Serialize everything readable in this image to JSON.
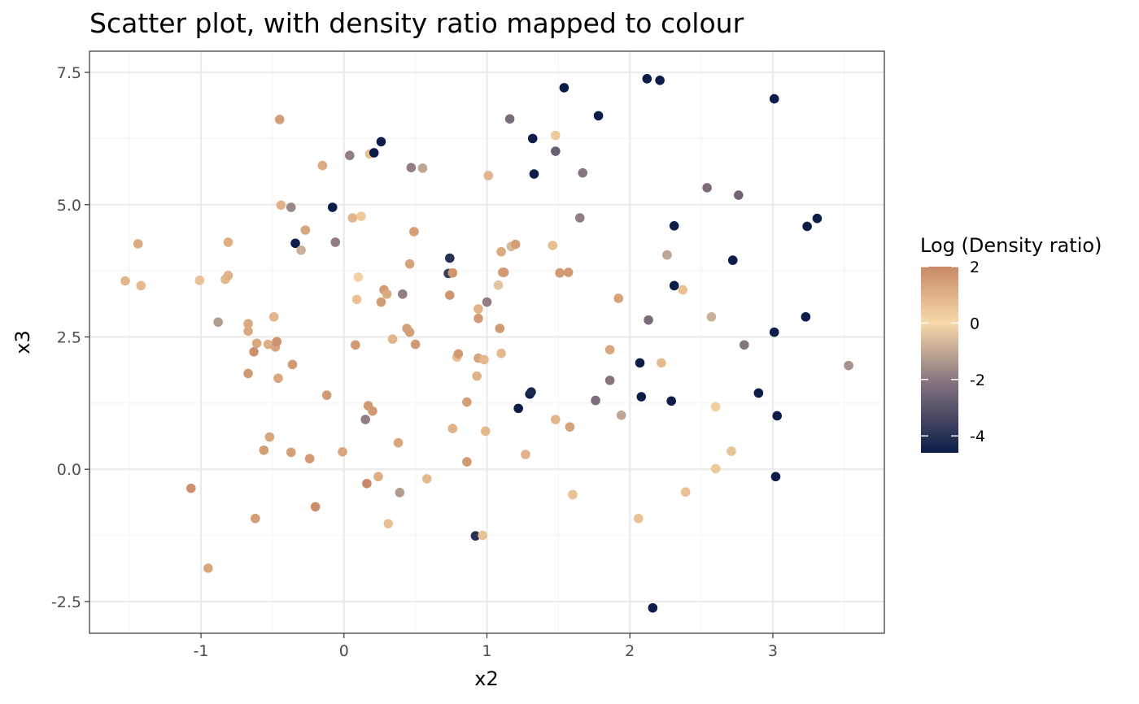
{
  "chart_data": {
    "type": "scatter",
    "title": "Scatter plot, with density ratio mapped to colour",
    "xlabel": "x2",
    "ylabel": "x3",
    "xlim": [
      -1.78,
      3.78
    ],
    "ylim": [
      -3.1,
      7.9
    ],
    "x_ticks": [
      -1,
      0,
      1,
      2,
      3
    ],
    "x_tick_labels": [
      "-1",
      "0",
      "1",
      "2",
      "3"
    ],
    "y_ticks": [
      -2.5,
      0.0,
      2.5,
      5.0,
      7.5
    ],
    "y_tick_labels": [
      "-2.5",
      "0.0",
      "2.5",
      "5.0",
      "7.5"
    ],
    "grid": true,
    "legend": {
      "title": "Log (Density ratio)",
      "placement": "right",
      "range": [
        -4.6,
        2.0
      ],
      "ticks": [
        2,
        0,
        -2,
        -4
      ],
      "tick_labels": [
        "2",
        "0",
        "-2",
        "-4"
      ],
      "colors": {
        "low": "#0b1d48",
        "mid_low": "#85737e",
        "mid": "#f8d9a9",
        "high": "#c88a66"
      }
    },
    "colors": {
      "panel_border": "#333333",
      "grid_major": "#ebebeb",
      "grid_minor": "#f5f5f5"
    },
    "points": [
      {
        "x": -1.53,
        "y": 3.56,
        "c": 0.9
      },
      {
        "x": -1.44,
        "y": 4.26,
        "c": 1.2
      },
      {
        "x": -1.42,
        "y": 3.47,
        "c": 0.8
      },
      {
        "x": -1.07,
        "y": -0.36,
        "c": 1.8
      },
      {
        "x": -1.01,
        "y": 3.57,
        "c": 0.6
      },
      {
        "x": -0.95,
        "y": -1.87,
        "c": 1.3
      },
      {
        "x": -0.88,
        "y": 2.78,
        "c": -1.2
      },
      {
        "x": -0.83,
        "y": 3.59,
        "c": 0.8
      },
      {
        "x": -0.81,
        "y": 4.29,
        "c": 1.1
      },
      {
        "x": -0.81,
        "y": 3.66,
        "c": 1.0
      },
      {
        "x": -0.67,
        "y": 2.75,
        "c": 1.2
      },
      {
        "x": -0.67,
        "y": 2.61,
        "c": 1.2
      },
      {
        "x": -0.67,
        "y": 1.81,
        "c": 1.6
      },
      {
        "x": -0.63,
        "y": 2.22,
        "c": 1.8
      },
      {
        "x": -0.62,
        "y": -0.93,
        "c": 1.5
      },
      {
        "x": -0.61,
        "y": 2.38,
        "c": 1.3
      },
      {
        "x": -0.56,
        "y": 0.36,
        "c": 1.5
      },
      {
        "x": -0.53,
        "y": 2.36,
        "c": 1.1
      },
      {
        "x": -0.52,
        "y": 0.61,
        "c": 1.3
      },
      {
        "x": -0.49,
        "y": 2.88,
        "c": 0.9
      },
      {
        "x": -0.48,
        "y": 2.31,
        "c": 1.3
      },
      {
        "x": -0.47,
        "y": 2.41,
        "c": 1.8
      },
      {
        "x": -0.46,
        "y": 1.72,
        "c": 1.3
      },
      {
        "x": -0.45,
        "y": 6.61,
        "c": 1.5
      },
      {
        "x": -0.44,
        "y": 4.99,
        "c": 1.0
      },
      {
        "x": -0.37,
        "y": 4.95,
        "c": -1.6
      },
      {
        "x": -0.37,
        "y": 0.32,
        "c": 1.5
      },
      {
        "x": -0.36,
        "y": 1.98,
        "c": 1.6
      },
      {
        "x": -0.34,
        "y": 4.27,
        "c": -4.6
      },
      {
        "x": -0.3,
        "y": 4.14,
        "c": -0.8
      },
      {
        "x": -0.27,
        "y": 4.52,
        "c": 1.3
      },
      {
        "x": -0.24,
        "y": 0.2,
        "c": 1.6
      },
      {
        "x": -0.2,
        "y": -0.71,
        "c": 1.9
      },
      {
        "x": -0.15,
        "y": 5.74,
        "c": 1.2
      },
      {
        "x": -0.12,
        "y": 1.4,
        "c": 1.6
      },
      {
        "x": -0.08,
        "y": 4.95,
        "c": -4.6
      },
      {
        "x": -0.06,
        "y": 4.29,
        "c": -1.8
      },
      {
        "x": -0.01,
        "y": 0.33,
        "c": 1.3
      },
      {
        "x": 0.04,
        "y": 5.93,
        "c": -1.8
      },
      {
        "x": 0.06,
        "y": 4.75,
        "c": 0.9
      },
      {
        "x": 0.08,
        "y": 2.35,
        "c": 1.6
      },
      {
        "x": 0.09,
        "y": 3.21,
        "c": 0.6
      },
      {
        "x": 0.1,
        "y": 3.63,
        "c": 0.2
      },
      {
        "x": 0.12,
        "y": 4.78,
        "c": 0.4
      },
      {
        "x": 0.15,
        "y": 0.94,
        "c": -1.8
      },
      {
        "x": 0.16,
        "y": -0.27,
        "c": 2.0
      },
      {
        "x": 0.17,
        "y": 1.2,
        "c": 1.6
      },
      {
        "x": 0.18,
        "y": 5.96,
        "c": 0.6
      },
      {
        "x": 0.2,
        "y": 1.1,
        "c": 1.6
      },
      {
        "x": 0.21,
        "y": 5.98,
        "c": -4.6
      },
      {
        "x": 0.24,
        "y": -0.14,
        "c": 1.1
      },
      {
        "x": 0.26,
        "y": 6.19,
        "c": -4.6
      },
      {
        "x": 0.26,
        "y": 3.16,
        "c": 1.6
      },
      {
        "x": 0.28,
        "y": 3.39,
        "c": 1.6
      },
      {
        "x": 0.3,
        "y": 3.31,
        "c": 1.2
      },
      {
        "x": 0.31,
        "y": -1.03,
        "c": 0.6
      },
      {
        "x": 0.34,
        "y": 2.46,
        "c": 0.9
      },
      {
        "x": 0.38,
        "y": 0.5,
        "c": 1.3
      },
      {
        "x": 0.39,
        "y": -0.44,
        "c": -1.2
      },
      {
        "x": 0.41,
        "y": 3.31,
        "c": -1.8
      },
      {
        "x": 0.44,
        "y": 2.66,
        "c": 1.5
      },
      {
        "x": 0.46,
        "y": 2.59,
        "c": 1.5
      },
      {
        "x": 0.46,
        "y": 3.88,
        "c": 1.4
      },
      {
        "x": 0.47,
        "y": 5.7,
        "c": -1.8
      },
      {
        "x": 0.49,
        "y": 4.49,
        "c": 1.5
      },
      {
        "x": 0.5,
        "y": 2.36,
        "c": 1.6
      },
      {
        "x": 0.55,
        "y": 5.69,
        "c": -1.0
      },
      {
        "x": 0.58,
        "y": -0.18,
        "c": 0.8
      },
      {
        "x": 0.73,
        "y": 3.7,
        "c": -3.6
      },
      {
        "x": 0.74,
        "y": 3.99,
        "c": -4.0
      },
      {
        "x": 0.74,
        "y": 3.29,
        "c": 1.7
      },
      {
        "x": 0.76,
        "y": 3.71,
        "c": 1.7
      },
      {
        "x": 0.76,
        "y": 0.77,
        "c": 1.0
      },
      {
        "x": 0.79,
        "y": 2.12,
        "c": 0.6
      },
      {
        "x": 0.8,
        "y": 2.18,
        "c": 1.6
      },
      {
        "x": 0.86,
        "y": 1.27,
        "c": 1.5
      },
      {
        "x": 0.86,
        "y": 0.14,
        "c": 1.6
      },
      {
        "x": 0.92,
        "y": -1.26,
        "c": -4.0
      },
      {
        "x": 0.93,
        "y": 1.76,
        "c": 1.0
      },
      {
        "x": 0.94,
        "y": 3.03,
        "c": 1.0
      },
      {
        "x": 0.94,
        "y": 2.85,
        "c": 1.6
      },
      {
        "x": 0.94,
        "y": 2.1,
        "c": 1.3
      },
      {
        "x": 0.97,
        "y": -1.25,
        "c": 0.6
      },
      {
        "x": 0.98,
        "y": 2.07,
        "c": 0.8
      },
      {
        "x": 0.99,
        "y": 0.72,
        "c": 0.8
      },
      {
        "x": 1.0,
        "y": 3.16,
        "c": -1.8
      },
      {
        "x": 1.01,
        "y": 5.55,
        "c": 0.9
      },
      {
        "x": 1.08,
        "y": 3.48,
        "c": -0.4
      },
      {
        "x": 1.09,
        "y": 2.66,
        "c": 1.6
      },
      {
        "x": 1.1,
        "y": 2.19,
        "c": 0.8
      },
      {
        "x": 1.1,
        "y": 4.11,
        "c": 1.2
      },
      {
        "x": 1.11,
        "y": 3.72,
        "c": 1.5
      },
      {
        "x": 1.12,
        "y": 3.72,
        "c": 1.6
      },
      {
        "x": 1.16,
        "y": 6.62,
        "c": -2.2
      },
      {
        "x": 1.17,
        "y": 4.21,
        "c": -0.6
      },
      {
        "x": 1.2,
        "y": 4.25,
        "c": 1.5
      },
      {
        "x": 1.22,
        "y": 1.15,
        "c": -4.6
      },
      {
        "x": 1.27,
        "y": 0.28,
        "c": 1.0
      },
      {
        "x": 1.3,
        "y": 1.42,
        "c": -4.6
      },
      {
        "x": 1.31,
        "y": 1.46,
        "c": -4.3
      },
      {
        "x": 1.32,
        "y": 6.25,
        "c": -4.6
      },
      {
        "x": 1.33,
        "y": 5.58,
        "c": -4.6
      },
      {
        "x": 1.46,
        "y": 4.23,
        "c": 0.7
      },
      {
        "x": 1.48,
        "y": 6.31,
        "c": 0.4
      },
      {
        "x": 1.48,
        "y": 0.94,
        "c": 0.9
      },
      {
        "x": 1.48,
        "y": 6.01,
        "c": -2.6
      },
      {
        "x": 1.51,
        "y": 3.71,
        "c": 1.6
      },
      {
        "x": 1.54,
        "y": 7.21,
        "c": -4.6
      },
      {
        "x": 1.57,
        "y": 3.72,
        "c": 1.6
      },
      {
        "x": 1.58,
        "y": 0.8,
        "c": 1.4
      },
      {
        "x": 1.6,
        "y": -0.48,
        "c": 0.6
      },
      {
        "x": 1.65,
        "y": 4.75,
        "c": -1.8
      },
      {
        "x": 1.67,
        "y": 5.6,
        "c": -2.0
      },
      {
        "x": 1.76,
        "y": 1.3,
        "c": -2.2
      },
      {
        "x": 1.78,
        "y": 6.68,
        "c": -4.6
      },
      {
        "x": 1.86,
        "y": 2.26,
        "c": 1.3
      },
      {
        "x": 1.86,
        "y": 1.68,
        "c": -2.0
      },
      {
        "x": 1.92,
        "y": 3.23,
        "c": 1.4
      },
      {
        "x": 1.94,
        "y": 1.02,
        "c": -1.0
      },
      {
        "x": 2.06,
        "y": -0.93,
        "c": 0.6
      },
      {
        "x": 2.07,
        "y": 2.01,
        "c": -4.6
      },
      {
        "x": 2.08,
        "y": 1.37,
        "c": -4.6
      },
      {
        "x": 2.12,
        "y": 7.38,
        "c": -4.6
      },
      {
        "x": 2.13,
        "y": 2.82,
        "c": -2.2
      },
      {
        "x": 2.16,
        "y": -2.62,
        "c": -4.6
      },
      {
        "x": 2.21,
        "y": 7.35,
        "c": -4.6
      },
      {
        "x": 2.22,
        "y": 2.01,
        "c": 0.8
      },
      {
        "x": 2.26,
        "y": 4.05,
        "c": -1.0
      },
      {
        "x": 2.29,
        "y": 1.29,
        "c": -4.6
      },
      {
        "x": 2.31,
        "y": 4.6,
        "c": -4.6
      },
      {
        "x": 2.31,
        "y": 3.47,
        "c": -4.6
      },
      {
        "x": 2.37,
        "y": 3.39,
        "c": 0.6
      },
      {
        "x": 2.39,
        "y": -0.43,
        "c": 0.6
      },
      {
        "x": 2.54,
        "y": 5.32,
        "c": -2.2
      },
      {
        "x": 2.57,
        "y": 2.88,
        "c": -0.8
      },
      {
        "x": 2.6,
        "y": 1.18,
        "c": 0.3
      },
      {
        "x": 2.6,
        "y": 0.01,
        "c": 0.4
      },
      {
        "x": 2.71,
        "y": 0.34,
        "c": 0.6
      },
      {
        "x": 2.72,
        "y": 3.95,
        "c": -4.6
      },
      {
        "x": 2.76,
        "y": 5.18,
        "c": -2.4
      },
      {
        "x": 2.8,
        "y": 2.35,
        "c": -2.0
      },
      {
        "x": 2.9,
        "y": 1.44,
        "c": -4.6
      },
      {
        "x": 3.01,
        "y": 7.0,
        "c": -4.6
      },
      {
        "x": 3.01,
        "y": 2.59,
        "c": -4.6
      },
      {
        "x": 3.02,
        "y": -0.14,
        "c": -4.6
      },
      {
        "x": 3.03,
        "y": 1.01,
        "c": -4.6
      },
      {
        "x": 3.23,
        "y": 2.88,
        "c": -4.6
      },
      {
        "x": 3.24,
        "y": 4.59,
        "c": -4.6
      },
      {
        "x": 3.31,
        "y": 4.74,
        "c": -4.6
      },
      {
        "x": 3.53,
        "y": 1.96,
        "c": -1.4
      }
    ]
  }
}
